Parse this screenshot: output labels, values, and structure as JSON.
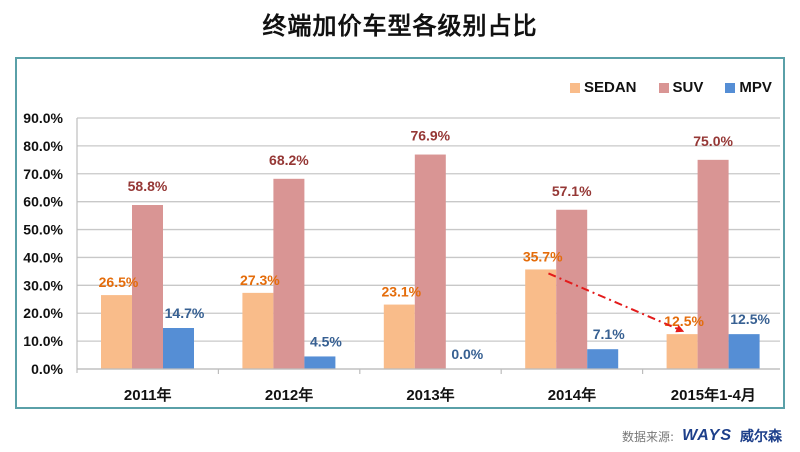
{
  "title": "终端加价车型各级别占比",
  "footer": {
    "source_label": "数据来源:",
    "brand": "WAYS",
    "brand_cn": "威尔森"
  },
  "colors": {
    "SEDAN": "#f9bc8a",
    "SUV": "#d99594",
    "MPV": "#558ed5",
    "SEDAN_label": "#e46c0a",
    "SUV_label": "#953735",
    "MPV_label": "#376092",
    "arrow": "#e31b1b",
    "frame": "#5aa0a8",
    "grid": "#c8c8c8"
  },
  "chart_data": {
    "type": "bar",
    "title": "终端加价车型各级别占比",
    "xlabel": "",
    "ylabel": "",
    "categories": [
      "2011年",
      "2012年",
      "2013年",
      "2014年",
      "2015年1-4月"
    ],
    "series": [
      {
        "name": "SEDAN",
        "values": [
          26.5,
          27.3,
          23.1,
          35.7,
          12.5
        ],
        "labels": [
          "26.5%",
          "27.3%",
          "23.1%",
          "35.7%",
          "12.5%"
        ]
      },
      {
        "name": "SUV",
        "values": [
          58.8,
          68.2,
          76.9,
          57.1,
          75.0
        ],
        "labels": [
          "58.8%",
          "68.2%",
          "76.9%",
          "57.1%",
          "75.0%"
        ]
      },
      {
        "name": "MPV",
        "values": [
          14.7,
          4.5,
          0.0,
          7.1,
          12.5
        ],
        "labels": [
          "14.7%",
          "4.5%",
          "0.0%",
          "7.1%",
          "12.5%"
        ]
      }
    ],
    "ylim": [
      0,
      90
    ],
    "yticks": [
      0,
      10,
      20,
      30,
      40,
      50,
      60,
      70,
      80,
      90
    ],
    "ytick_labels": [
      "0.0%",
      "10.0%",
      "20.0%",
      "30.0%",
      "40.0%",
      "50.0%",
      "60.0%",
      "70.0%",
      "80.0%",
      "90.0%"
    ],
    "grid": true,
    "legend": {
      "position": "top-right",
      "entries": [
        "SEDAN",
        "SUV",
        "MPV"
      ]
    },
    "annotations": [
      {
        "type": "arrow",
        "style": "dash-dot",
        "from": {
          "category": "2014年",
          "series": "SEDAN",
          "value": 35.7
        },
        "to": {
          "category": "2015年1-4月",
          "series": "SEDAN",
          "value": 12.5
        }
      }
    ]
  }
}
